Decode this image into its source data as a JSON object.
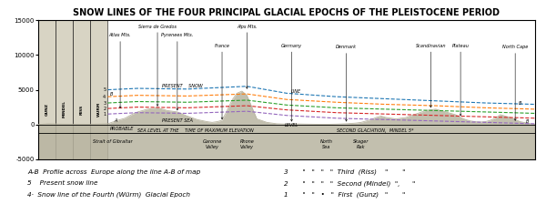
{
  "chart_data": {
    "type": "area",
    "title": "SNOW LINES OF THE FOUR PRINCIPAL GLACIAL EPOCHS OF THE PLEISTOCENE PERIOD",
    "xlim": [
      0,
      100
    ],
    "ylim": [
      -5000,
      15000
    ],
    "yticks": [
      -5000,
      0,
      5000,
      10000,
      15000
    ],
    "tick_labels": "y",
    "grid": false,
    "series": [
      {
        "type": "area",
        "color": "#b8b4a0",
        "x": [
          0,
          2,
          5,
          10,
          14,
          16,
          17.5,
          19,
          20,
          21,
          22,
          24,
          26,
          28,
          30,
          32,
          34,
          35,
          36,
          37,
          38,
          39,
          40,
          41,
          42,
          43,
          44,
          46,
          48,
          50,
          52,
          54,
          56,
          58,
          60,
          62,
          64,
          65,
          66,
          67,
          68,
          69,
          70,
          72,
          74,
          76,
          78,
          80,
          82,
          84,
          85,
          86,
          87,
          88,
          89,
          90,
          91,
          92,
          93,
          95,
          97,
          99,
          100
        ],
        "values": [
          0,
          100,
          50,
          30,
          100,
          600,
          900,
          1500,
          1800,
          2000,
          2200,
          2400,
          2000,
          1800,
          1200,
          700,
          400,
          300,
          400,
          600,
          2000,
          3500,
          4500,
          4800,
          4200,
          2500,
          800,
          300,
          100,
          50,
          80,
          50,
          30,
          20,
          50,
          100,
          200,
          300,
          500,
          700,
          1000,
          1200,
          1000,
          800,
          1000,
          1500,
          2000,
          2200,
          1800,
          1400,
          1000,
          700,
          500,
          400,
          350,
          400,
          600,
          900,
          1400,
          1000,
          400,
          100,
          0
        ]
      },
      {
        "type": "line",
        "name": "5",
        "line_style": "dashed",
        "x": [
          14,
          20,
          30,
          42,
          50,
          60,
          70,
          80,
          90,
          100
        ],
        "values": [
          5000,
          5200,
          5100,
          5500,
          4500,
          4000,
          3700,
          3400,
          3100,
          2900
        ]
      },
      {
        "type": "line",
        "name": "4",
        "line_style": "dashed",
        "x": [
          14,
          20,
          30,
          42,
          50,
          60,
          70,
          80,
          90,
          100
        ],
        "values": [
          4000,
          4200,
          4100,
          4400,
          3600,
          3200,
          2900,
          2700,
          2400,
          2200
        ]
      },
      {
        "type": "line",
        "name": "3",
        "line_style": "dashed",
        "x": [
          14,
          20,
          30,
          42,
          50,
          60,
          70,
          80,
          90,
          100
        ],
        "values": [
          3100,
          3300,
          3200,
          3500,
          2800,
          2400,
          2200,
          2000,
          1800,
          1600
        ]
      },
      {
        "type": "line",
        "name": "2",
        "line_style": "dashed",
        "x": [
          14,
          20,
          30,
          42,
          50,
          60,
          70,
          80,
          90,
          100
        ],
        "values": [
          2300,
          2500,
          2400,
          2700,
          2100,
          1700,
          1500,
          1300,
          1100,
          900
        ]
      },
      {
        "type": "line",
        "name": "1",
        "line_style": "dashed",
        "x": [
          14,
          20,
          30,
          42,
          50,
          60,
          70,
          80,
          90,
          100
        ],
        "values": [
          1500,
          1700,
          1600,
          1900,
          1300,
          900,
          700,
          500,
          300,
          100
        ]
      }
    ],
    "reference_lines": [
      {
        "value": 0,
        "color": "black"
      },
      {
        "value": -1200,
        "color": "black"
      }
    ],
    "bands": [
      {
        "x1": 0,
        "x2": 3.5,
        "label": "GUNZ",
        "label_y": 2200,
        "color": "#d8d4c4"
      },
      {
        "x1": 3.5,
        "x2": 7.0,
        "label": "MINDEL",
        "label_y": 2200,
        "color": "#d8d4c4"
      },
      {
        "x1": 7.0,
        "x2": 10.5,
        "label": "RISS",
        "label_y": 2200,
        "color": "#d8d4c4"
      },
      {
        "x1": 10.5,
        "x2": 14.0,
        "label": "WURM",
        "label_y": 2200,
        "color": "#d8d4c4"
      }
    ],
    "pointers": [
      {
        "text": "Atlas Mts.",
        "x": 16.5,
        "y": 12500,
        "arrow_y": 2100
      },
      {
        "text": "Sierra de Gredos",
        "x": 24,
        "y": 13800,
        "arrow_y": 2400
      },
      {
        "text": "Pyrenees Mts.",
        "x": 28,
        "y": 12500,
        "arrow_y": 1800
      },
      {
        "text": "France",
        "x": 37,
        "y": 11000,
        "arrow_y": 500
      },
      {
        "text": "Alps Mts.",
        "x": 42,
        "y": 13800,
        "arrow_y": 4900
      },
      {
        "text": "Germany",
        "x": 51,
        "y": 11000,
        "arrow_y": 200
      },
      {
        "text": "Denmark",
        "x": 62,
        "y": 10800,
        "arrow_y": 200
      },
      {
        "text": "Scandinavian",
        "x": 79,
        "y": 11000,
        "arrow_y": 2200
      },
      {
        "text": "Plateau",
        "x": 85,
        "y": 11000,
        "arrow_y": 1000
      },
      {
        "text": "North Cape",
        "x": 96,
        "y": 10800,
        "arrow_y": 300
      }
    ],
    "annotations": [
      {
        "text": "B",
        "x": 14.8,
        "y": 4100,
        "anchor": "center"
      },
      {
        "text": "A",
        "x": 15.5,
        "y": 350,
        "anchor": "center"
      },
      {
        "text": "B",
        "x": 97,
        "y": 2900,
        "anchor": "center"
      },
      {
        "text": "B",
        "x": 98.5,
        "y": 150,
        "anchor": "center"
      },
      {
        "text": "PRESENT    SNOW",
        "x": 29,
        "y": 5350,
        "anchor": "center"
      },
      {
        "text": "LINE",
        "x": 52,
        "y": 4600,
        "anchor": "center"
      },
      {
        "text": "PRESENT SEA",
        "x": 28,
        "y": 350,
        "anchor": "center"
      },
      {
        "text": "LEVEL",
        "x": 51,
        "y": -250,
        "anchor": "center"
      },
      {
        "text": "PROBABLE",
        "x": 14.5,
        "y": -900,
        "anchor": "left"
      },
      {
        "text": "SEA LEVEL AT THE    TIME OF MAXIMUM ELEVATION",
        "x": 20,
        "y": -1100,
        "anchor": "left"
      },
      {
        "text": "SECOND GLACIATION,  MINDEL 5*",
        "x": 60,
        "y": -1100,
        "anchor": "left"
      }
    ],
    "region_labels": [
      {
        "text": "Strait of Gibraltar",
        "x": 15,
        "y": -2200
      },
      {
        "text": "Garonne\nValley",
        "x": 35,
        "y": -2200
      },
      {
        "text": "Rhone\nValley",
        "x": 42,
        "y": -2200
      },
      {
        "text": "North\nSea",
        "x": 58,
        "y": -2200
      },
      {
        "text": "Skager\nRak",
        "x": 65,
        "y": -2200
      }
    ],
    "notes": [
      "A-B  Profile across  Europe along the line A-B of map",
      "5    Present snow line",
      "4·  Snow line of the Fourth (Würm)  Glacial Epoch",
      "3       \"   \"   \"   \"  Third  (Riss)    \"       \"",
      "2       \"   \"   \"   \"  Second (Mindel)  \",      \"",
      "1       \"   \"   •   \"  First  (Gunz)   \"       \""
    ]
  }
}
